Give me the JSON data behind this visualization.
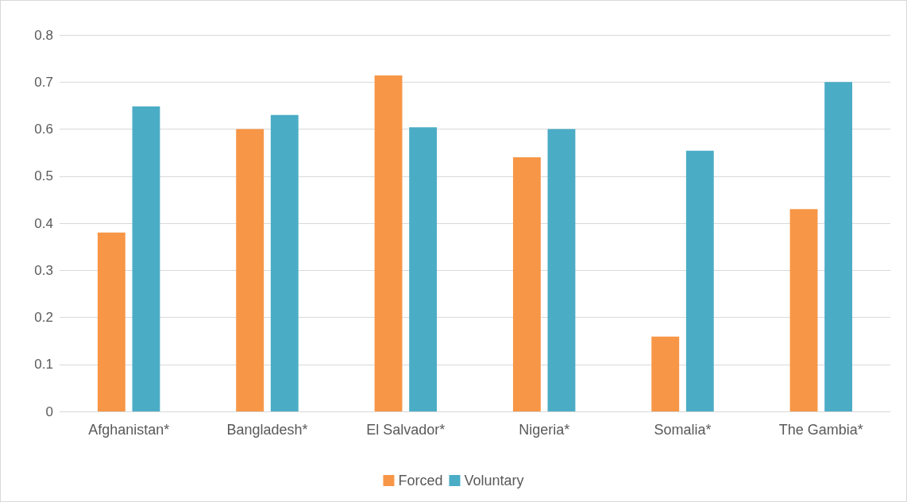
{
  "chart_data": {
    "type": "bar",
    "categories": [
      "Afghanistan*",
      "Bangladesh*",
      "El Salvador*",
      "Nigeria*",
      "Somalia*",
      "The Gambia*"
    ],
    "series": [
      {
        "name": "Forced",
        "color": "#f79646",
        "values": [
          0.38,
          0.6,
          0.714,
          0.54,
          0.159,
          0.43
        ]
      },
      {
        "name": "Voluntary",
        "color": "#4bacc6",
        "values": [
          0.648,
          0.63,
          0.604,
          0.6,
          0.554,
          0.7
        ]
      }
    ],
    "ylim": [
      0,
      0.8
    ],
    "yticks": [
      0,
      0.1,
      0.2,
      0.3,
      0.4,
      0.5,
      0.6,
      0.7,
      0.8
    ],
    "grid": "y",
    "legend": "bottom"
  }
}
